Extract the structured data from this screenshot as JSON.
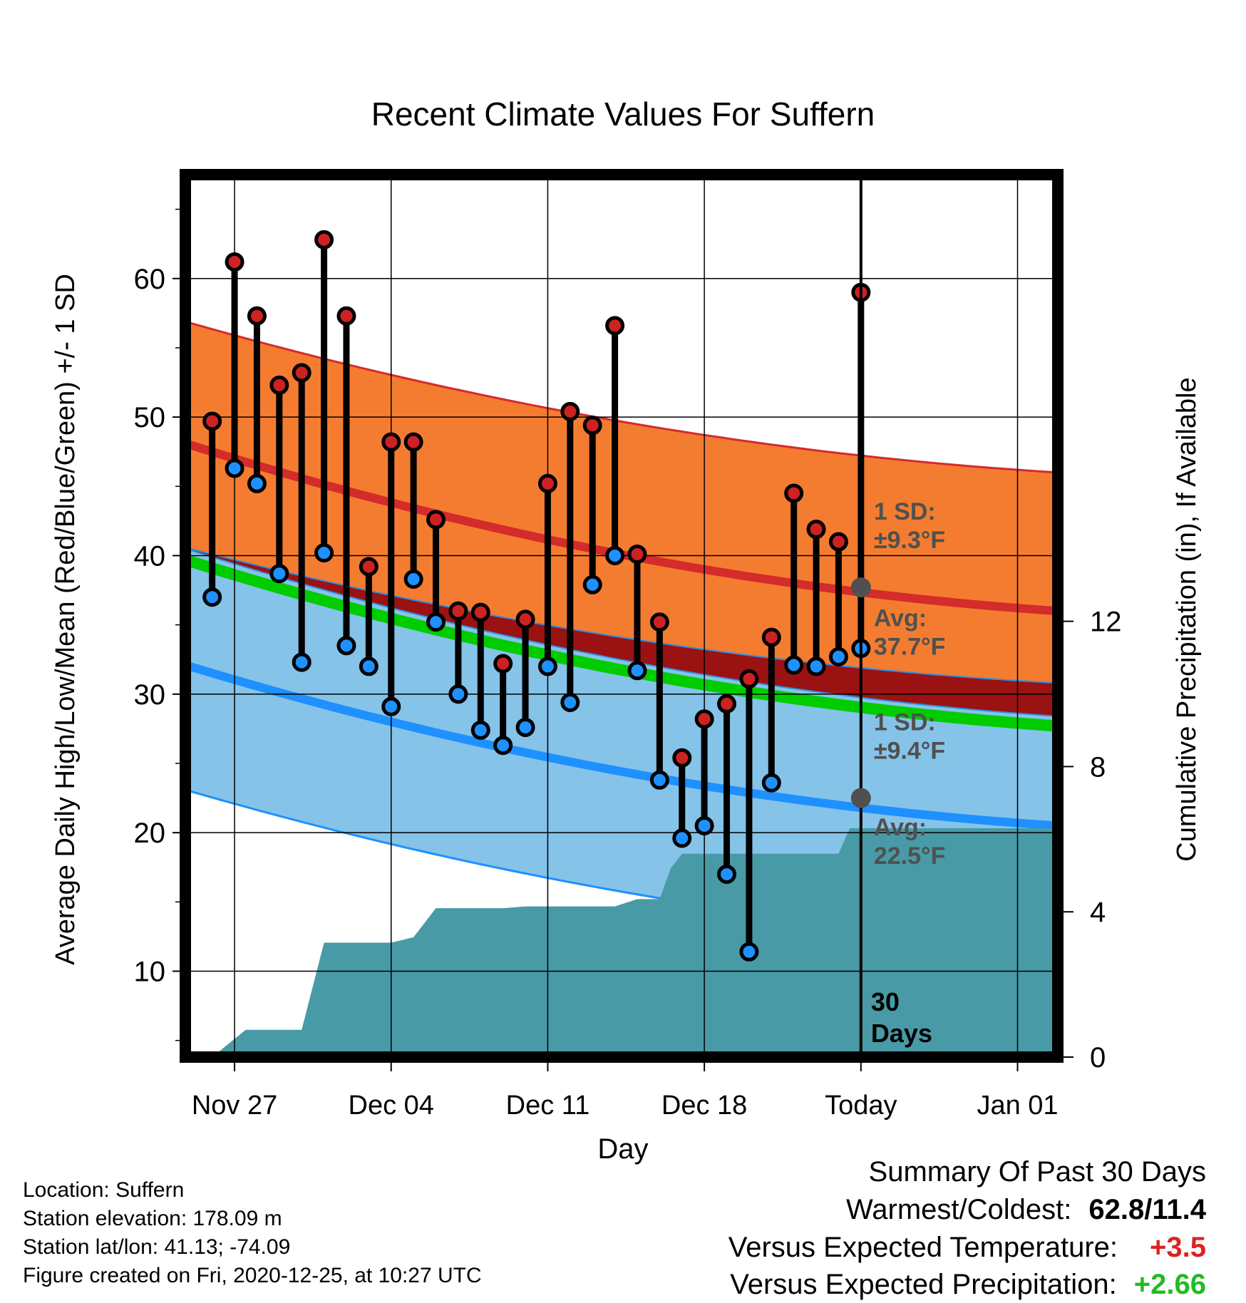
{
  "chart_data": {
    "type": "line",
    "title": "Recent Climate Values For Suffern",
    "xlabel": "Day",
    "ylabel_left": "Average Daily High/Low/Mean (Red/Blue/Green) +/- 1 SD",
    "ylabel_right": "Cumulative Precipitation (in), If Available",
    "x_tick_labels": [
      "Nov 27",
      "Dec 04",
      "Dec 11",
      "Dec 18",
      "Today",
      "Jan 01"
    ],
    "x_tick_days": [
      2,
      9,
      16,
      23,
      30,
      37
    ],
    "xlim": [
      -0.2,
      38.8
    ],
    "ylim_left": [
      3.8,
      67.5
    ],
    "y_ticks_left": [
      10,
      20,
      30,
      40,
      50,
      60
    ],
    "ylim_right": [
      0,
      24.3
    ],
    "y_ticks_right": [
      0,
      4,
      8,
      12
    ],
    "grid": true,
    "today_day": 30,
    "today_marker_label": "30\nDays",
    "normals": {
      "days": [
        0,
        38.8
      ],
      "high_avg": [
        48.0,
        36.0
      ],
      "high_upper": [
        56.8,
        46.0
      ],
      "high_lower": [
        40.5,
        30.8
      ],
      "low_avg": [
        32.0,
        20.5
      ],
      "low_upper": [
        40.4,
        28.4
      ],
      "low_lower": [
        23.0,
        12.0
      ],
      "mean_avg": [
        39.6,
        27.7
      ]
    },
    "annotations": {
      "high_sd": "1 SD:\n±9.3°F",
      "high_avg": "Avg:\n37.7°F",
      "high_avg_value": 37.7,
      "low_sd": "1 SD:\n±9.4°F",
      "low_avg": "Avg:\n22.5°F",
      "low_avg_value": 22.5
    },
    "series": [
      {
        "name": "High",
        "color": "#cc2222",
        "days": [
          1,
          2,
          3,
          4,
          5,
          6,
          7,
          8,
          9,
          10,
          11,
          12,
          13,
          14,
          15,
          16,
          17,
          18,
          19,
          20,
          21,
          22,
          23,
          24,
          25,
          26,
          27,
          28,
          29
        ],
        "values": [
          49.7,
          61.2,
          57.3,
          52.3,
          53.2,
          62.8,
          57.3,
          39.2,
          48.2,
          48.2,
          42.6,
          36.0,
          35.9,
          32.2,
          35.4,
          45.2,
          50.4,
          49.4,
          56.6,
          40.1,
          35.2,
          25.4,
          28.2,
          29.3,
          31.1,
          34.1,
          44.5,
          41.9,
          41.0
        ]
      },
      {
        "name": "Low",
        "color": "#1e90ff",
        "days": [
          1,
          2,
          3,
          4,
          5,
          6,
          7,
          8,
          9,
          10,
          11,
          12,
          13,
          14,
          15,
          16,
          17,
          18,
          19,
          20,
          21,
          22,
          23,
          24,
          25,
          26,
          27,
          28,
          29
        ],
        "values": [
          37.0,
          46.3,
          45.2,
          38.7,
          32.3,
          40.2,
          33.5,
          32.0,
          29.1,
          38.3,
          35.2,
          30.0,
          27.4,
          26.3,
          27.6,
          32.0,
          29.4,
          37.9,
          40.0,
          31.7,
          23.8,
          19.6,
          20.5,
          17.0,
          11.4,
          23.6,
          32.1,
          32.0,
          32.7
        ]
      }
    ],
    "extra_point": {
      "day": 30,
      "high": 59.0,
      "low": 33.3
    },
    "precip_cumulative": {
      "name": "Cumulative Precipitation",
      "color": "#489aa6",
      "days": [
        1,
        2,
        2.5,
        4,
        5,
        6,
        7,
        8,
        9,
        10,
        11,
        12,
        13,
        14,
        15,
        16,
        17,
        18,
        19,
        20,
        21,
        21.5,
        22,
        23,
        24,
        25,
        26,
        27,
        28,
        29,
        29.5,
        30,
        38.8
      ],
      "values": [
        0,
        0.5,
        0.75,
        0.75,
        0.75,
        3.15,
        3.15,
        3.15,
        3.15,
        3.3,
        4.1,
        4.1,
        4.1,
        4.1,
        4.15,
        4.15,
        4.15,
        4.15,
        4.15,
        4.35,
        4.35,
        5.2,
        5.6,
        5.6,
        5.6,
        5.6,
        5.6,
        5.6,
        5.6,
        5.6,
        6.3,
        6.3,
        6.3
      ]
    }
  },
  "footer": {
    "location": "Location: Suffern",
    "elevation": "Station elevation: 178.09 m",
    "latlon": "Station lat/lon: 41.13; -74.09",
    "created": "Figure created on Fri, 2020-12-25, at 10:27 UTC"
  },
  "summary": {
    "title": "Summary Of Past 30 Days",
    "warm_cold_label": "Warmest/Coldest:",
    "warm_cold_value": "62.8/11.4",
    "temp_label": "Versus Expected Temperature:",
    "temp_value": "+3.5",
    "temp_color": "#dd2222",
    "precip_label": "Versus Expected Precipitation:",
    "precip_value": "+2.66",
    "precip_color": "#22bb22"
  }
}
